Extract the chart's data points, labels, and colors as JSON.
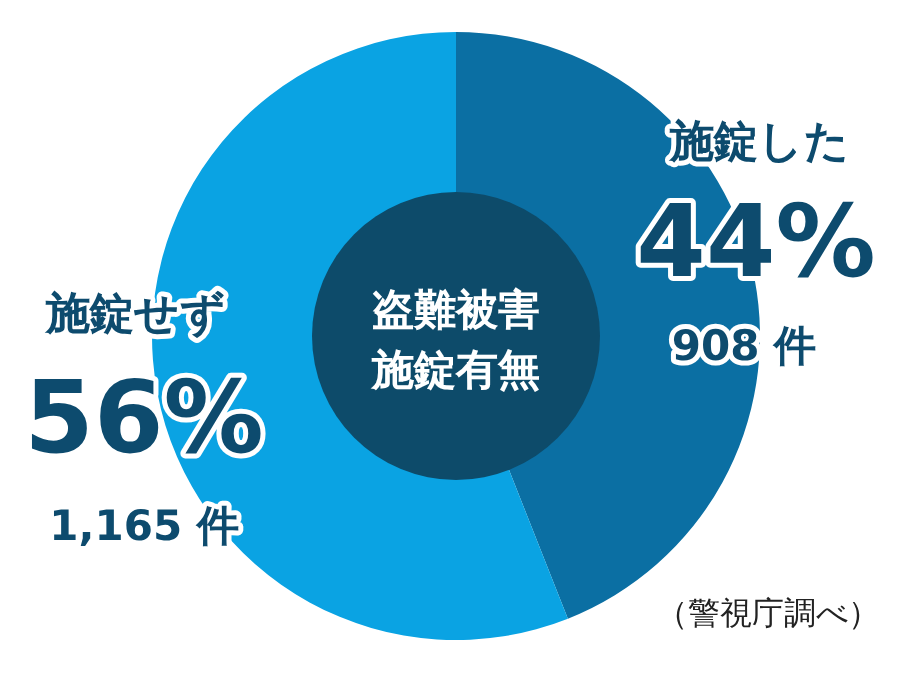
{
  "chart_data": {
    "type": "donut",
    "title": "盗難被害",
    "subtitle": "施錠有無",
    "categories": [
      "施錠した",
      "施錠せず"
    ],
    "values": [
      44,
      56
    ],
    "colors": [
      "#0b6fa3",
      "#0aa3e3"
    ],
    "value_labels": [
      "44%",
      "56%"
    ],
    "annotations": [
      "908 件",
      "1,165 件",
      "（警視庁調べ）"
    ]
  }
}
